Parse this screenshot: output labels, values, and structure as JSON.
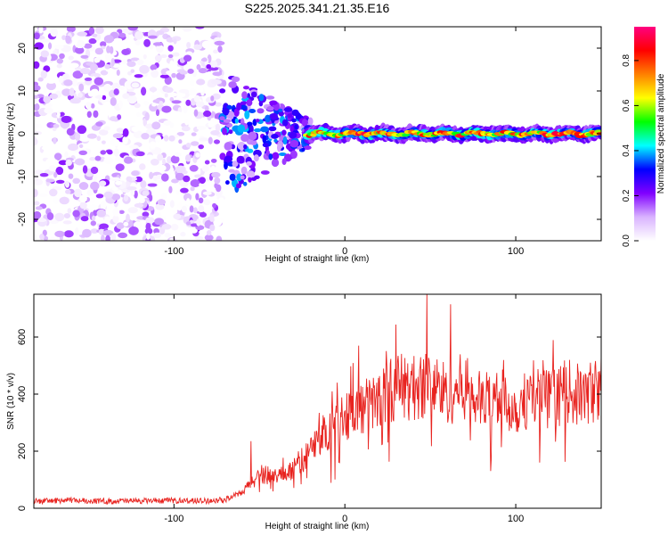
{
  "title": "S225.2025.341.21.35.E16",
  "chart_data": [
    {
      "type": "heatmap",
      "title": "S225.2025.341.21.35.E16",
      "xlabel": "Height of straight line (km)",
      "ylabel": "Frequency (Hz)",
      "xlim": [
        -182,
        150
      ],
      "ylim": [
        -25,
        25
      ],
      "x_ticks": [
        -100,
        0,
        100
      ],
      "x_tick_labels": [
        "-100",
        "0",
        "100"
      ],
      "y_ticks": [
        -20,
        -10,
        0,
        10,
        20
      ],
      "y_tick_labels": [
        "-20",
        "-10",
        "0",
        "10",
        "20"
      ],
      "colorbar": {
        "label": "Normalized spectral amplitude",
        "range": [
          0,
          0.95
        ],
        "ticks": [
          0.0,
          0.2,
          0.4,
          0.6,
          0.8
        ],
        "tick_labels": [
          "0.0",
          "0.2",
          "0.4",
          "0.6",
          "0.8"
        ],
        "colors": [
          "#ffffff",
          "#d9b3ff",
          "#8000ff",
          "#0000ff",
          "#00ffff",
          "#00ff00",
          "#ffff00",
          "#ff8000",
          "#ff0000",
          "#ff0080"
        ]
      },
      "regions": [
        {
          "description": "scattered low-amplitude noise",
          "x_range": [
            -182,
            -72
          ],
          "freq_range": [
            -25,
            25
          ],
          "amplitude": [
            0.0,
            0.2
          ]
        },
        {
          "description": "converging signal",
          "x_range": [
            -72,
            -20
          ],
          "freq_range": [
            -12,
            12
          ],
          "amplitude": [
            0.1,
            0.4
          ]
        },
        {
          "description": "steady tone",
          "x_range": [
            -22,
            150
          ],
          "freq_hz": 0,
          "amplitude": [
            0.5,
            0.9
          ]
        }
      ]
    },
    {
      "type": "line",
      "xlabel": "Height of straight line (km)",
      "ylabel": "SNR (10 * v/v)",
      "xlim": [
        -182,
        150
      ],
      "ylim": [
        0,
        750
      ],
      "x_ticks": [
        -100,
        0,
        100
      ],
      "x_tick_labels": [
        "-100",
        "0",
        "100"
      ],
      "y_ticks": [
        0,
        200,
        400,
        600
      ],
      "y_tick_labels": [
        "0",
        "200",
        "400",
        "600"
      ],
      "color": "#e8231f",
      "x": [
        -182,
        -160,
        -140,
        -120,
        -100,
        -80,
        -70,
        -60,
        -50,
        -40,
        -30,
        -20,
        -10,
        0,
        10,
        20,
        30,
        40,
        50,
        60,
        70,
        80,
        90,
        100,
        110,
        120,
        130,
        140,
        150
      ],
      "y": [
        25,
        28,
        25,
        26,
        27,
        26,
        30,
        55,
        120,
        110,
        140,
        200,
        280,
        330,
        350,
        380,
        430,
        420,
        440,
        400,
        430,
        370,
        390,
        350,
        400,
        380,
        410,
        390,
        430
      ],
      "peaks": [
        {
          "x": 48,
          "y": 750
        },
        {
          "x": 62,
          "y": 715
        },
        {
          "x": 8,
          "y": 570
        },
        {
          "x": -55,
          "y": 235
        }
      ]
    }
  ]
}
